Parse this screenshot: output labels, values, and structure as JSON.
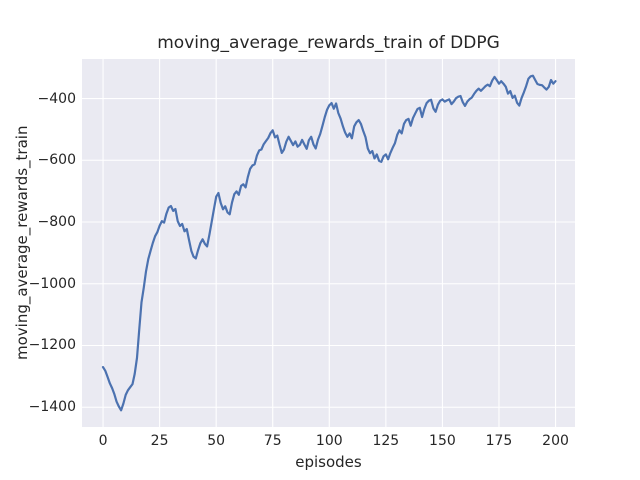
{
  "chart_data": {
    "type": "line",
    "title": "moving_average_rewards_train of DDPG",
    "xlabel": "episodes",
    "ylabel": "moving_average_rewards_train",
    "x_ticks": [
      0,
      25,
      50,
      75,
      100,
      125,
      150,
      175,
      200
    ],
    "y_ticks": [
      -400,
      -600,
      -800,
      -1000,
      -1200,
      -1400
    ],
    "xlim": [
      -9.3,
      208.6
    ],
    "ylim": [
      -1464,
      -272
    ],
    "grid": true,
    "legend_position": "none",
    "plot_background_color": "#eaeaf2",
    "grid_color": "#ffffff",
    "text_color": "#262626",
    "series": [
      {
        "name": "moving_average_rewards_train",
        "color": "#4c72b0",
        "x0": 0,
        "dx": 1,
        "y": [
          -1270,
          -1282,
          -1302,
          -1322,
          -1338,
          -1358,
          -1382,
          -1398,
          -1410,
          -1388,
          -1360,
          -1345,
          -1335,
          -1325,
          -1292,
          -1240,
          -1150,
          -1060,
          -1012,
          -960,
          -920,
          -893,
          -868,
          -846,
          -833,
          -812,
          -797,
          -802,
          -773,
          -753,
          -748,
          -764,
          -758,
          -797,
          -813,
          -806,
          -830,
          -823,
          -858,
          -893,
          -912,
          -918,
          -891,
          -869,
          -856,
          -871,
          -879,
          -841,
          -801,
          -759,
          -718,
          -706,
          -738,
          -759,
          -749,
          -769,
          -775,
          -737,
          -710,
          -701,
          -712,
          -683,
          -678,
          -688,
          -655,
          -628,
          -617,
          -613,
          -585,
          -568,
          -565,
          -548,
          -538,
          -528,
          -512,
          -503,
          -526,
          -520,
          -549,
          -576,
          -565,
          -540,
          -524,
          -537,
          -551,
          -539,
          -556,
          -550,
          -534,
          -549,
          -563,
          -535,
          -524,
          -549,
          -562,
          -533,
          -515,
          -488,
          -460,
          -437,
          -422,
          -415,
          -433,
          -416,
          -447,
          -465,
          -490,
          -510,
          -524,
          -513,
          -529,
          -490,
          -477,
          -470,
          -483,
          -505,
          -525,
          -562,
          -577,
          -570,
          -594,
          -581,
          -602,
          -605,
          -587,
          -581,
          -597,
          -576,
          -560,
          -545,
          -518,
          -503,
          -513,
          -482,
          -470,
          -466,
          -488,
          -463,
          -448,
          -434,
          -430,
          -460,
          -434,
          -415,
          -407,
          -404,
          -432,
          -443,
          -420,
          -407,
          -403,
          -410,
          -406,
          -403,
          -418,
          -410,
          -399,
          -394,
          -392,
          -412,
          -424,
          -410,
          -402,
          -397,
          -385,
          -375,
          -368,
          -375,
          -368,
          -360,
          -355,
          -360,
          -342,
          -330,
          -340,
          -352,
          -344,
          -352,
          -362,
          -384,
          -376,
          -398,
          -391,
          -414,
          -423,
          -398,
          -380,
          -360,
          -336,
          -328,
          -326,
          -340,
          -353,
          -356,
          -357,
          -364,
          -371,
          -362,
          -340,
          -352,
          -344
        ]
      }
    ]
  }
}
